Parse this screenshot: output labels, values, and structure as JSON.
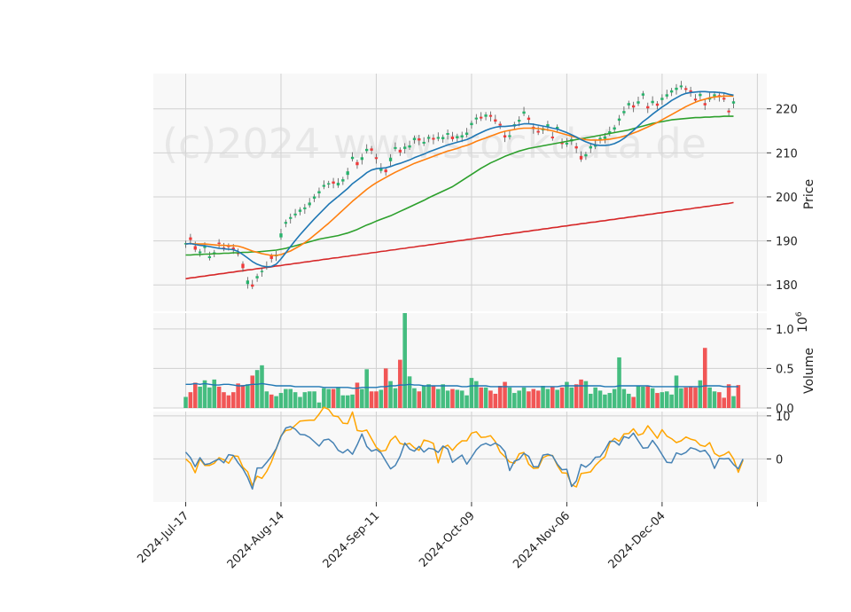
{
  "watermark": "(c)2024 www.stockdata.de",
  "colors": {
    "panel_bg": "#f8f8f8",
    "grid": "#d0d0d0",
    "up": "#26b36b",
    "down": "#f03a3a",
    "ma_short": "#1f77b4",
    "ma_mid": "#ff7f0e",
    "ma_long": "#2ca02c",
    "ma_200": "#d62728",
    "vol_avg": "#1f77b4",
    "osc_1": "#4682b4",
    "osc_2": "#ffa500"
  },
  "chart_data": {
    "type": "candlestick",
    "x_tick_labels": [
      "2024-Jul-17",
      "2024-Aug-14",
      "2024-Sep-11",
      "2024-Oct-09",
      "2024-Nov-06",
      "2024-Dec-04"
    ],
    "price_panel": {
      "ylabel": "Price",
      "yticks": [
        180,
        190,
        200,
        210,
        220
      ],
      "ylim": [
        174,
        228
      ],
      "close": [
        189.5,
        190.2,
        188.0,
        187.6,
        188.9,
        186.5,
        187.4,
        189.3,
        188.2,
        188.6,
        188.1,
        187.0,
        183.8,
        181.0,
        179.6,
        182.0,
        183.2,
        184.3,
        185.9,
        186.9,
        191.7,
        194.3,
        195.4,
        196.2,
        197.1,
        197.6,
        198.7,
        200.1,
        201.3,
        202.7,
        203.1,
        203.0,
        203.2,
        204.0,
        205.8,
        209.1,
        207.2,
        209.0,
        210.9,
        210.5,
        208.6,
        206.6,
        205.6,
        208.9,
        211.3,
        210.1,
        211.4,
        211.7,
        213.4,
        212.8,
        212.5,
        213.6,
        213.0,
        213.6,
        213.6,
        214.5,
        213.1,
        213.8,
        214.0,
        214.6,
        216.8,
        218.0,
        217.8,
        218.7,
        218.2,
        217.1,
        216.2,
        213.5,
        214.0,
        216.5,
        217.5,
        219.4,
        217.5,
        215.4,
        214.6,
        215.6,
        216.5,
        213.3,
        215.9,
        212.0,
        212.3,
        213.1,
        211.0,
        208.5,
        209.7,
        211.5,
        211.9,
        213.4,
        213.7,
        214.9,
        215.8,
        217.8,
        219.5,
        221.3,
        220.3,
        221.7,
        223.5,
        220.1,
        221.8,
        220.7,
        222.5,
        223.3,
        224.2,
        224.8,
        225.3,
        224.3,
        223.8,
        221.9,
        223.4,
        220.8,
        222.6,
        223.3,
        222.7,
        222.1,
        219.2,
        221.7
      ],
      "open": [
        189.2,
        190.8,
        188.8,
        187.2,
        188.4,
        186.1,
        187.1,
        189.6,
        188.5,
        188.9,
        188.5,
        187.2,
        184.8,
        180.2,
        180.1,
        181.5,
        182.9,
        184.0,
        186.6,
        186.5,
        190.8,
        193.9,
        195.0,
        195.8,
        196.6,
        197.2,
        198.1,
        199.6,
        200.8,
        202.3,
        202.8,
        203.5,
        202.6,
        203.5,
        205.0,
        208.6,
        207.9,
        208.4,
        210.4,
        211.0,
        209.0,
        205.9,
        206.2,
        208.1,
        210.9,
        210.7,
        210.9,
        211.2,
        212.9,
        213.3,
        212.1,
        213.2,
        213.4,
        213.2,
        213.1,
        214.1,
        213.7,
        213.3,
        213.5,
        214.1,
        216.3,
        217.6,
        218.2,
        218.2,
        218.6,
        217.6,
        216.6,
        214.0,
        213.6,
        216.0,
        217.1,
        218.9,
        218.0,
        215.9,
        215.0,
        215.1,
        216.0,
        213.7,
        215.4,
        212.5,
        211.9,
        212.6,
        211.5,
        209.3,
        209.2,
        211.0,
        211.4,
        212.9,
        213.2,
        214.4,
        215.3,
        217.3,
        219.0,
        220.8,
        220.8,
        221.2,
        223.0,
        220.6,
        221.3,
        221.2,
        222.0,
        222.8,
        223.7,
        224.3,
        224.9,
        224.7,
        224.2,
        222.3,
        222.9,
        221.3,
        222.1,
        222.8,
        223.1,
        222.5,
        219.6,
        221.2
      ],
      "ma_short": [
        189.3,
        189.4,
        189.2,
        189.0,
        188.9,
        188.7,
        188.5,
        188.3,
        188.2,
        188.1,
        188.0,
        187.6,
        186.9,
        186.1,
        185.3,
        184.7,
        184.3,
        184.1,
        184.2,
        184.7,
        185.9,
        187.3,
        188.7,
        190.1,
        191.4,
        192.6,
        193.8,
        195.0,
        196.1,
        197.2,
        198.3,
        199.2,
        200.1,
        201.0,
        201.9,
        203.0,
        203.8,
        204.6,
        205.5,
        206.1,
        206.4,
        206.5,
        206.6,
        206.9,
        207.3,
        207.6,
        208.0,
        208.4,
        208.9,
        209.3,
        209.7,
        210.2,
        210.6,
        211.0,
        211.4,
        211.8,
        212.1,
        212.4,
        212.7,
        213.0,
        213.5,
        214.1,
        214.6,
        215.1,
        215.5,
        215.8,
        216.0,
        216.0,
        216.1,
        216.2,
        216.4,
        216.6,
        216.6,
        216.5,
        216.3,
        216.1,
        215.9,
        215.6,
        215.4,
        215.0,
        214.6,
        214.1,
        213.6,
        213.0,
        212.5,
        212.1,
        211.8,
        211.7,
        211.7,
        211.8,
        212.1,
        212.6,
        213.3,
        214.2,
        215.1,
        216.1,
        217.1,
        217.9,
        218.8,
        219.6,
        220.4,
        221.1,
        221.9,
        222.5,
        223.1,
        223.5,
        223.7,
        223.8,
        223.9,
        223.9,
        223.8,
        223.8,
        223.7,
        223.6,
        223.3,
        223.1
      ],
      "ma_mid": [
        189.3,
        189.4,
        189.3,
        189.3,
        189.3,
        189.2,
        189.1,
        189.0,
        189.0,
        188.9,
        188.9,
        188.8,
        188.5,
        188.1,
        187.7,
        187.4,
        187.1,
        186.9,
        186.7,
        186.7,
        186.9,
        187.3,
        187.7,
        188.3,
        188.9,
        189.6,
        190.4,
        191.3,
        192.2,
        193.1,
        194.0,
        195.0,
        196.0,
        197.0,
        198.0,
        199.0,
        199.9,
        200.8,
        201.7,
        202.5,
        203.2,
        203.8,
        204.4,
        205.0,
        205.6,
        206.1,
        206.6,
        207.1,
        207.6,
        208.0,
        208.4,
        208.8,
        209.2,
        209.6,
        210.0,
        210.4,
        210.7,
        211.0,
        211.4,
        211.7,
        212.1,
        212.6,
        213.0,
        213.4,
        213.8,
        214.2,
        214.6,
        214.9,
        215.1,
        215.3,
        215.5,
        215.6,
        215.6,
        215.6,
        215.5,
        215.4,
        215.2,
        215.0,
        214.7,
        214.4,
        214.1,
        213.8,
        213.5,
        213.2,
        213.0,
        212.9,
        212.9,
        212.9,
        213.0,
        213.1,
        213.3,
        213.5,
        213.8,
        214.1,
        214.5,
        214.9,
        215.4,
        215.9,
        216.4,
        216.9,
        217.5,
        218.1,
        218.7,
        219.3,
        219.9,
        220.5,
        221.0,
        221.5,
        221.9,
        222.2,
        222.5,
        222.7,
        222.8,
        222.9,
        222.9,
        222.9
      ],
      "ma_long": [
        186.8,
        186.8,
        186.9,
        186.9,
        187.0,
        187.0,
        187.1,
        187.1,
        187.2,
        187.2,
        187.3,
        187.3,
        187.4,
        187.4,
        187.5,
        187.5,
        187.6,
        187.7,
        187.8,
        187.9,
        188.1,
        188.3,
        188.6,
        188.9,
        189.2,
        189.5,
        189.8,
        190.1,
        190.4,
        190.6,
        190.8,
        191.0,
        191.2,
        191.5,
        191.8,
        192.2,
        192.6,
        193.1,
        193.6,
        194.0,
        194.5,
        194.9,
        195.3,
        195.7,
        196.2,
        196.7,
        197.2,
        197.7,
        198.2,
        198.7,
        199.2,
        199.8,
        200.3,
        200.8,
        201.3,
        201.8,
        202.3,
        203.0,
        203.7,
        204.4,
        205.1,
        205.8,
        206.5,
        207.1,
        207.7,
        208.2,
        208.7,
        209.2,
        209.6,
        210.0,
        210.4,
        210.7,
        211.0,
        211.2,
        211.4,
        211.6,
        211.8,
        212.0,
        212.2,
        212.4,
        212.6,
        212.8,
        213.0,
        213.2,
        213.4,
        213.6,
        213.8,
        214.0,
        214.2,
        214.4,
        214.6,
        214.8,
        215.0,
        215.2,
        215.5,
        215.8,
        216.1,
        216.4,
        216.7,
        216.9,
        217.1,
        217.3,
        217.5,
        217.6,
        217.7,
        217.8,
        217.9,
        218.0,
        218.0,
        218.1,
        218.1,
        218.2,
        218.2,
        218.3,
        218.3,
        218.3
      ],
      "ma_200": [
        181.4,
        181.6,
        181.7,
        181.9,
        182.0,
        182.2,
        182.3,
        182.5,
        182.6,
        182.8,
        182.9,
        183.1,
        183.2,
        183.4,
        183.5,
        183.7,
        183.8,
        184.0,
        184.1,
        184.3,
        184.4,
        184.6,
        184.7,
        184.9,
        185.0,
        185.2,
        185.3,
        185.5,
        185.6,
        185.8,
        185.9,
        186.1,
        186.2,
        186.4,
        186.5,
        186.7,
        186.8,
        187.0,
        187.1,
        187.3,
        187.4,
        187.6,
        187.7,
        187.9,
        188.0,
        188.2,
        188.3,
        188.5,
        188.6,
        188.8,
        188.9,
        189.1,
        189.2,
        189.4,
        189.5,
        189.7,
        189.8,
        190.0,
        190.1,
        190.3,
        190.4,
        190.6,
        190.7,
        190.9,
        191.0,
        191.2,
        191.3,
        191.5,
        191.6,
        191.8,
        191.9,
        192.1,
        192.2,
        192.4,
        192.5,
        192.7,
        192.8,
        193.0,
        193.1,
        193.3,
        193.4,
        193.6,
        193.7,
        193.9,
        194.0,
        194.2,
        194.3,
        194.5,
        194.6,
        194.8,
        194.9,
        195.1,
        195.2,
        195.4,
        195.5,
        195.7,
        195.8,
        196.0,
        196.1,
        196.3,
        196.4,
        196.6,
        196.7,
        196.9,
        197.0,
        197.2,
        197.3,
        197.5,
        197.6,
        197.8,
        197.9,
        198.1,
        198.2,
        198.4,
        198.5,
        198.7
      ]
    },
    "volume_panel": {
      "ylabel": "Volume",
      "unit_exponent": "6",
      "yticks": [
        0.0,
        0.5,
        1.0
      ],
      "ylim": [
        0,
        1.2
      ],
      "volume": [
        0.14,
        0.2,
        0.32,
        0.27,
        0.35,
        0.26,
        0.36,
        0.27,
        0.2,
        0.16,
        0.2,
        0.31,
        0.29,
        0.3,
        0.41,
        0.48,
        0.54,
        0.21,
        0.17,
        0.15,
        0.19,
        0.24,
        0.24,
        0.2,
        0.14,
        0.2,
        0.21,
        0.21,
        0.07,
        0.25,
        0.24,
        0.24,
        0.26,
        0.16,
        0.16,
        0.17,
        0.32,
        0.24,
        0.49,
        0.21,
        0.21,
        0.23,
        0.5,
        0.34,
        0.25,
        0.61,
        1.2,
        0.4,
        0.25,
        0.21,
        0.28,
        0.3,
        0.28,
        0.24,
        0.3,
        0.22,
        0.24,
        0.23,
        0.22,
        0.16,
        0.38,
        0.34,
        0.26,
        0.26,
        0.22,
        0.18,
        0.28,
        0.33,
        0.26,
        0.19,
        0.22,
        0.26,
        0.21,
        0.24,
        0.22,
        0.28,
        0.24,
        0.27,
        0.23,
        0.26,
        0.33,
        0.26,
        0.3,
        0.36,
        0.34,
        0.18,
        0.26,
        0.22,
        0.17,
        0.19,
        0.24,
        0.64,
        0.24,
        0.18,
        0.14,
        0.28,
        0.27,
        0.28,
        0.25,
        0.19,
        0.2,
        0.21,
        0.17,
        0.41,
        0.25,
        0.26,
        0.27,
        0.26,
        0.35,
        0.76,
        0.26,
        0.21,
        0.2,
        0.13,
        0.3,
        0.15,
        0.29
      ],
      "volume_avg": [
        0.3,
        0.3,
        0.31,
        0.3,
        0.31,
        0.3,
        0.29,
        0.29,
        0.3,
        0.3,
        0.29,
        0.28,
        0.28,
        0.29,
        0.3,
        0.3,
        0.31,
        0.3,
        0.29,
        0.28,
        0.28,
        0.28,
        0.28,
        0.27,
        0.27,
        0.27,
        0.27,
        0.27,
        0.27,
        0.26,
        0.26,
        0.26,
        0.26,
        0.26,
        0.26,
        0.25,
        0.25,
        0.26,
        0.26,
        0.26,
        0.26,
        0.27,
        0.27,
        0.28,
        0.28,
        0.29,
        0.29,
        0.3,
        0.29,
        0.29,
        0.28,
        0.28,
        0.28,
        0.28,
        0.28,
        0.28,
        0.28,
        0.28,
        0.27,
        0.27,
        0.28,
        0.28,
        0.28,
        0.28,
        0.27,
        0.27,
        0.27,
        0.27,
        0.27,
        0.27,
        0.27,
        0.27,
        0.27,
        0.27,
        0.27,
        0.27,
        0.27,
        0.27,
        0.27,
        0.28,
        0.28,
        0.28,
        0.28,
        0.28,
        0.28,
        0.28,
        0.28,
        0.28,
        0.27,
        0.27,
        0.27,
        0.28,
        0.28,
        0.28,
        0.28,
        0.28,
        0.28,
        0.28,
        0.27,
        0.27,
        0.27,
        0.27,
        0.27,
        0.27,
        0.27,
        0.27,
        0.27,
        0.27,
        0.27,
        0.28,
        0.28,
        0.28,
        0.28,
        0.27,
        0.27,
        0.27,
        0.27
      ]
    },
    "oscillator_panel": {
      "yticks": [
        0,
        10
      ],
      "ylim": [
        -10,
        11
      ],
      "line_1": [
        1.6,
        0.3,
        -1.8,
        0.3,
        -1.3,
        -1.1,
        -0.5,
        0.0,
        -0.9,
        1.0,
        0.8,
        -0.9,
        -2.3,
        -4.3,
        -7.0,
        -2.1,
        -2.1,
        -0.8,
        0.6,
        2.4,
        5.2,
        7.2,
        7.5,
        6.9,
        5.7,
        5.6,
        5.0,
        4.0,
        3.0,
        4.4,
        4.6,
        3.7,
        2.0,
        1.4,
        2.2,
        1.1,
        3.3,
        5.8,
        2.9,
        1.8,
        2.2,
        1.4,
        -0.5,
        -2.3,
        -1.5,
        0.6,
        3.7,
        2.3,
        1.8,
        2.9,
        1.6,
        2.5,
        2.3,
        1.5,
        3.0,
        2.3,
        -0.8,
        0.1,
        0.9,
        -1.2,
        0.4,
        2.1,
        3.2,
        3.6,
        3.1,
        3.7,
        3.0,
        1.7,
        -2.7,
        -0.5,
        -0.1,
        1.3,
        0.6,
        -1.8,
        -1.8,
        0.9,
        1.1,
        0.7,
        -1.2,
        -2.5,
        -2.4,
        -6.4,
        -5.1,
        -1.3,
        -1.9,
        -1.0,
        0.4,
        0.5,
        2.1,
        4.1,
        4.1,
        3.2,
        5.2,
        4.8,
        6.0,
        4.2,
        2.5,
        2.6,
        4.3,
        2.8,
        1.0,
        -0.8,
        -0.9,
        1.4,
        1.0,
        1.5,
        2.6,
        2.3,
        1.7,
        2.0,
        0.6,
        -2.2,
        0.1,
        0.0,
        0.1,
        -1.3,
        -2.3,
        0.0
      ],
      "line_2": [
        0.0,
        -1.0,
        -3.2,
        0.0,
        -1.5,
        -1.5,
        -1.0,
        0.3,
        -0.2,
        -1.0,
        0.7,
        0.6,
        -1.9,
        -3.0,
        -6.2,
        -4.0,
        -4.5,
        -2.9,
        -0.7,
        2.3,
        5.4,
        6.6,
        6.8,
        7.8,
        8.8,
        8.9,
        9.0,
        9.0,
        10.4,
        12.0,
        11.5,
        10.0,
        9.8,
        8.3,
        8.2,
        10.9,
        6.6,
        6.4,
        6.7,
        4.7,
        2.7,
        1.8,
        2.0,
        4.3,
        5.3,
        3.6,
        3.3,
        3.6,
        2.6,
        2.0,
        4.4,
        4.1,
        3.6,
        -0.9,
        2.6,
        3.2,
        2.0,
        3.3,
        4.2,
        4.2,
        6.0,
        6.3,
        5.0,
        5.1,
        5.4,
        4.0,
        1.6,
        0.5,
        -0.7,
        -1.0,
        1.2,
        1.5,
        -1.2,
        -2.2,
        -2.1,
        0.3,
        0.8,
        0.8,
        -1.5,
        -3.2,
        -3.3,
        -6.0,
        -6.5,
        -3.4,
        -3.2,
        -3.0,
        -1.5,
        -0.4,
        0.5,
        3.7,
        4.8,
        4.1,
        5.8,
        5.9,
        7.0,
        5.5,
        5.9,
        7.7,
        6.3,
        4.8,
        6.8,
        5.3,
        4.7,
        3.8,
        4.2,
        5.1,
        4.6,
        4.3,
        3.2,
        2.9,
        3.8,
        1.3,
        0.6,
        1.0,
        1.7,
        0.0,
        -3.1,
        -0.3
      ]
    }
  }
}
